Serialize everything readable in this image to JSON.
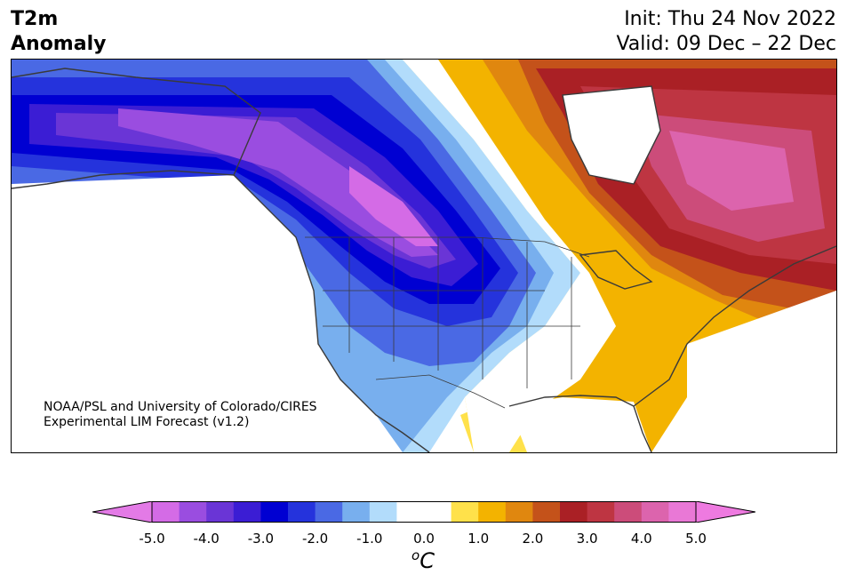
{
  "title": {
    "line1": "T2m",
    "line2": "Anomaly"
  },
  "dates": {
    "init": "Init: Thu 24 Nov 2022",
    "valid": "Valid: 09 Dec – 22 Dec"
  },
  "credit": {
    "line1": "NOAA/PSL and University of Colorado/CIRES",
    "line2": "Experimental LIM Forecast (v1.2)"
  },
  "colorbar": {
    "colors": [
      "#d46be6",
      "#9a4de0",
      "#6a35d6",
      "#3b1dd4",
      "#0000d2",
      "#2533dc",
      "#4a69e4",
      "#78afee",
      "#b2dcfb",
      "#ffffff",
      "#ffffff",
      "#ffe14a",
      "#f3b300",
      "#e0870f",
      "#c4521a",
      "#aa2025",
      "#be3542",
      "#cc4c7a",
      "#dc64ad",
      "#e978d6"
    ],
    "under_color": "#e37ae6",
    "over_color": "#ee7ae0",
    "min": -5.0,
    "max": 5.0,
    "ticks": [
      "-5.0",
      "-4.0",
      "-3.0",
      "-2.0",
      "-1.0",
      "0.0",
      "1.0",
      "2.0",
      "3.0",
      "4.0",
      "5.0"
    ],
    "unit_base": "C",
    "unit_sup": "o"
  },
  "map_colors": {
    "cold_1": "#b2dcfb",
    "cold_2": "#78afee",
    "cold_3": "#4a69e4",
    "cold_4": "#2533dc",
    "cold_5": "#0000d2",
    "cold_6": "#3b1dd4",
    "cold_7": "#6a35d6",
    "cold_8": "#9a4de0",
    "cold_9": "#d46be6",
    "warm_1": "#ffe14a",
    "warm_2": "#f3b300",
    "warm_3": "#e0870f",
    "warm_4": "#c4521a",
    "warm_5": "#aa2025",
    "warm_6": "#be3542",
    "warm_7": "#cc4c7a",
    "warm_8": "#dc64ad",
    "land_outline": "#3a3a3a"
  }
}
